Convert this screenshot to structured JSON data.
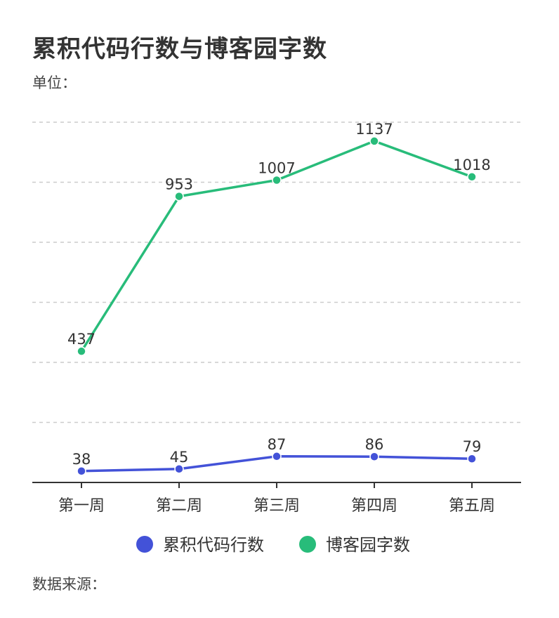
{
  "title": "累积代码行数与博客园字数",
  "unit_label": "单位：",
  "source_label": "数据来源：",
  "colors": {
    "series1": "#4352d8",
    "series2": "#28bc7a",
    "grid": "#cccccc",
    "axis": "#333333"
  },
  "chart_data": {
    "type": "line",
    "title": "累积代码行数与博客园字数",
    "categories": [
      "第一周",
      "第二周",
      "第三周",
      "第四周",
      "第五周"
    ],
    "series": [
      {
        "name": "累积代码行数",
        "values": [
          38,
          45,
          87,
          86,
          79
        ]
      },
      {
        "name": "博客园字数",
        "values": [
          437,
          953,
          1007,
          1137,
          1018
        ]
      }
    ],
    "ylim": [
      0,
      1200
    ],
    "grid": true,
    "legend": "bottom"
  }
}
